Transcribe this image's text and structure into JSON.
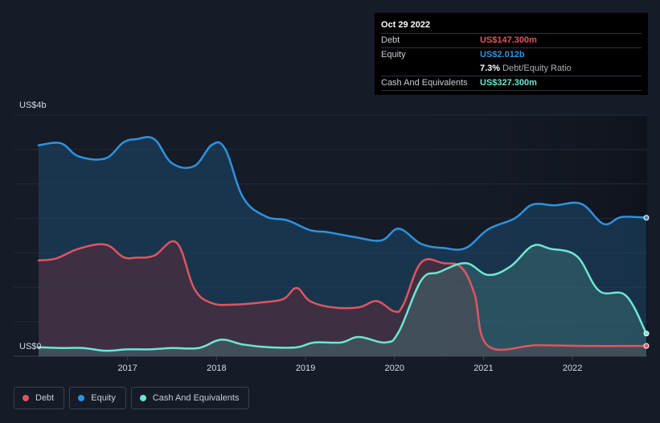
{
  "tooltip": {
    "date": "Oct 29 2022",
    "debt_label": "Debt",
    "debt_value": "US$147.300m",
    "equity_label": "Equity",
    "equity_value": "US$2.012b",
    "ratio_pct": "7.3%",
    "ratio_text": "Debt/Equity Ratio",
    "cash_label": "Cash And Equivalents",
    "cash_value": "US$327.300m"
  },
  "legend": {
    "debt": "Debt",
    "equity": "Equity",
    "cash": "Cash And Equivalents"
  },
  "colors": {
    "debt": "#e05561",
    "equity": "#2e93e0",
    "cash": "#6ee6d3",
    "background": "#151b27"
  },
  "chart_data": {
    "type": "area",
    "y_top_label": "US$4b",
    "y_bottom_label": "US$0",
    "ylim": [
      0,
      3.5
    ],
    "x_ticks": [
      "2017",
      "2018",
      "2019",
      "2020",
      "2021",
      "2022"
    ],
    "x_range": [
      2016.0,
      2022.83
    ],
    "series": [
      {
        "name": "Equity",
        "points": [
          [
            2016.0,
            3.06
          ],
          [
            2016.25,
            3.09
          ],
          [
            2016.45,
            2.9
          ],
          [
            2016.75,
            2.87
          ],
          [
            2016.95,
            3.1
          ],
          [
            2017.1,
            3.15
          ],
          [
            2017.3,
            3.15
          ],
          [
            2017.5,
            2.8
          ],
          [
            2017.75,
            2.76
          ],
          [
            2017.95,
            3.07
          ],
          [
            2018.1,
            3.0
          ],
          [
            2018.3,
            2.3
          ],
          [
            2018.55,
            2.03
          ],
          [
            2018.8,
            1.97
          ],
          [
            2019.05,
            1.83
          ],
          [
            2019.25,
            1.8
          ],
          [
            2019.55,
            1.73
          ],
          [
            2019.85,
            1.68
          ],
          [
            2020.05,
            1.85
          ],
          [
            2020.3,
            1.63
          ],
          [
            2020.55,
            1.57
          ],
          [
            2020.8,
            1.57
          ],
          [
            2021.05,
            1.84
          ],
          [
            2021.35,
            2.0
          ],
          [
            2021.55,
            2.2
          ],
          [
            2021.8,
            2.19
          ],
          [
            2022.1,
            2.21
          ],
          [
            2022.35,
            1.92
          ],
          [
            2022.55,
            2.02
          ],
          [
            2022.83,
            2.01
          ]
        ]
      },
      {
        "name": "Debt",
        "points": [
          [
            2016.0,
            1.39
          ],
          [
            2016.2,
            1.42
          ],
          [
            2016.45,
            1.56
          ],
          [
            2016.75,
            1.62
          ],
          [
            2016.95,
            1.44
          ],
          [
            2017.1,
            1.43
          ],
          [
            2017.3,
            1.46
          ],
          [
            2017.55,
            1.65
          ],
          [
            2017.75,
            0.98
          ],
          [
            2017.95,
            0.77
          ],
          [
            2018.2,
            0.75
          ],
          [
            2018.5,
            0.78
          ],
          [
            2018.75,
            0.83
          ],
          [
            2018.9,
            0.99
          ],
          [
            2019.05,
            0.8
          ],
          [
            2019.3,
            0.71
          ],
          [
            2019.6,
            0.71
          ],
          [
            2019.8,
            0.8
          ],
          [
            2020.0,
            0.65
          ],
          [
            2020.1,
            0.75
          ],
          [
            2020.3,
            1.36
          ],
          [
            2020.55,
            1.35
          ],
          [
            2020.75,
            1.29
          ],
          [
            2020.9,
            0.9
          ],
          [
            2021.05,
            0.15
          ],
          [
            2021.6,
            0.16
          ],
          [
            2022.1,
            0.15
          ],
          [
            2022.83,
            0.15
          ]
        ]
      },
      {
        "name": "Cash And Equivalents",
        "points": [
          [
            2016.0,
            0.13
          ],
          [
            2016.25,
            0.12
          ],
          [
            2016.5,
            0.12
          ],
          [
            2016.75,
            0.08
          ],
          [
            2017.0,
            0.1
          ],
          [
            2017.25,
            0.1
          ],
          [
            2017.5,
            0.12
          ],
          [
            2017.8,
            0.12
          ],
          [
            2018.05,
            0.24
          ],
          [
            2018.3,
            0.17
          ],
          [
            2018.6,
            0.13
          ],
          [
            2018.9,
            0.13
          ],
          [
            2019.1,
            0.2
          ],
          [
            2019.4,
            0.2
          ],
          [
            2019.6,
            0.28
          ],
          [
            2019.9,
            0.2
          ],
          [
            2020.05,
            0.36
          ],
          [
            2020.3,
            1.1
          ],
          [
            2020.5,
            1.22
          ],
          [
            2020.8,
            1.35
          ],
          [
            2021.05,
            1.18
          ],
          [
            2021.3,
            1.3
          ],
          [
            2021.55,
            1.6
          ],
          [
            2021.75,
            1.56
          ],
          [
            2022.05,
            1.45
          ],
          [
            2022.3,
            0.95
          ],
          [
            2022.6,
            0.88
          ],
          [
            2022.83,
            0.33
          ]
        ]
      }
    ],
    "grid": true,
    "legend_position": "bottom-left"
  }
}
